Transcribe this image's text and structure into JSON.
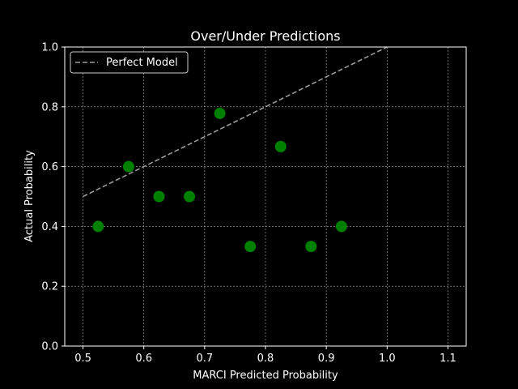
{
  "chart_data": {
    "type": "scatter",
    "title": "Over/Under Predictions",
    "xlabel": "MARCI Predicted Probability",
    "ylabel": "Actual Probability",
    "xlim": [
      0.47,
      1.13
    ],
    "ylim": [
      0.0,
      1.0
    ],
    "xticks": [
      "0.5",
      "0.6",
      "0.7",
      "0.8",
      "0.9",
      "1.0",
      "1.1"
    ],
    "yticks": [
      "0.0",
      "0.2",
      "0.4",
      "0.6",
      "0.8",
      "1.0"
    ],
    "grid": true,
    "legend": {
      "position": "top-left",
      "entries": [
        "Perfect Model"
      ]
    },
    "series": [
      {
        "kind": "points",
        "color": "#008000",
        "x": [
          0.525,
          0.575,
          0.625,
          0.675,
          0.725,
          0.775,
          0.825,
          0.875,
          0.925
        ],
        "y": [
          0.4,
          0.6,
          0.5,
          0.5,
          0.778,
          0.333,
          0.667,
          0.333,
          0.4
        ]
      },
      {
        "kind": "line",
        "name": "Perfect Model",
        "style": "dashed",
        "color": "#9a9a9a",
        "x": [
          0.5,
          1.0
        ],
        "y": [
          0.5,
          1.0
        ]
      }
    ]
  }
}
